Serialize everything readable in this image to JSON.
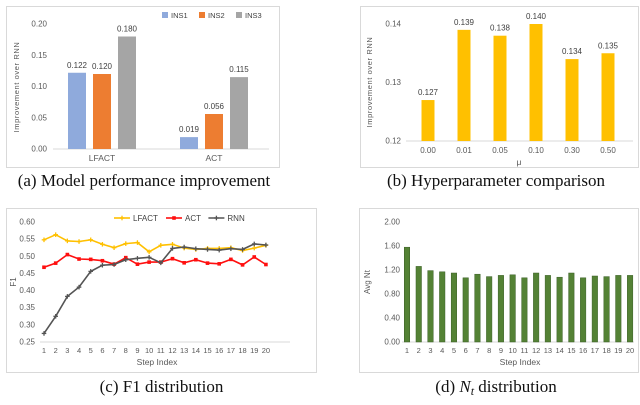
{
  "colors": {
    "ins1_blue": "#8FAADC",
    "ins2_orange": "#ED7D31",
    "ins3_gray": "#A5A5A5",
    "gold": "#FFC000",
    "red": "#FF0F0F",
    "dark_line": "#545454",
    "green": "#548235",
    "green_edge": "#3A5F27",
    "axis_gray": "#D9D9D9",
    "tick_text": "#595959",
    "label_text": "#404040",
    "panel_border": "#D9D9D9"
  },
  "captions": {
    "a": "(a) Model performance improvement",
    "b": "(b) Hyperparameter comparison",
    "c": "(c) F1 distribution",
    "d_prefix": "(d) ",
    "d_var": "N",
    "d_sub": "t",
    "d_suffix": " distribution"
  },
  "chart_data": [
    {
      "id": "a",
      "type": "bar",
      "title": "Model performance improvement",
      "ylabel": "Improvement over RNN",
      "xlabel": "",
      "categories": [
        "LFACT",
        "ACT"
      ],
      "series": [
        {
          "name": "INS1",
          "color_key": "ins1_blue",
          "values": [
            0.122,
            0.019
          ],
          "labels": [
            "0.122",
            "0.019"
          ]
        },
        {
          "name": "INS2",
          "color_key": "ins2_orange",
          "values": [
            0.12,
            0.056
          ],
          "labels": [
            "0.120",
            "0.056"
          ]
        },
        {
          "name": "INS3",
          "color_key": "ins3_gray",
          "values": [
            0.18,
            0.115
          ],
          "labels": [
            "0.180",
            "0.115"
          ]
        }
      ],
      "yticks": [
        0.0,
        0.05,
        0.1,
        0.15,
        0.2
      ],
      "ytick_labels": [
        "0.00",
        "0.05",
        "0.10",
        "0.15",
        "0.20"
      ],
      "ylim": [
        0.0,
        0.2
      ],
      "grid": false,
      "legend_position": "top-right"
    },
    {
      "id": "b",
      "type": "bar",
      "title": "Hyperparameter comparison",
      "ylabel": "Improvement over RNN",
      "xlabel": "μ",
      "categories": [
        "0.00",
        "0.01",
        "0.05",
        "0.10",
        "0.30",
        "0.50"
      ],
      "values": [
        0.127,
        0.139,
        0.138,
        0.14,
        0.134,
        0.135
      ],
      "labels": [
        "0.127",
        "0.139",
        "0.138",
        "0.140",
        "0.134",
        "0.135"
      ],
      "yticks": [
        0.12,
        0.13,
        0.14
      ],
      "ytick_labels": [
        "0.12",
        "0.13",
        "0.14"
      ],
      "ylim": [
        0.12,
        0.14
      ],
      "grid": false,
      "bar_color_key": "gold",
      "legend_position": "none"
    },
    {
      "id": "c",
      "type": "line",
      "title": "F1 distribution",
      "ylabel": "F1",
      "xlabel": "Step Index",
      "x": [
        1,
        2,
        3,
        4,
        5,
        6,
        7,
        8,
        9,
        10,
        11,
        12,
        13,
        14,
        15,
        16,
        17,
        18,
        19,
        20
      ],
      "series": [
        {
          "name": "LFACT",
          "color_key": "gold",
          "marker": "plus",
          "values": [
            0.548,
            0.563,
            0.545,
            0.543,
            0.548,
            0.535,
            0.525,
            0.537,
            0.54,
            0.513,
            0.532,
            0.535,
            0.524,
            0.52,
            0.523,
            0.523,
            0.525,
            0.517,
            0.524,
            0.532
          ]
        },
        {
          "name": "ACT",
          "color_key": "red",
          "marker": "square",
          "values": [
            0.468,
            0.48,
            0.505,
            0.492,
            0.491,
            0.487,
            0.477,
            0.496,
            0.477,
            0.483,
            0.483,
            0.493,
            0.481,
            0.49,
            0.48,
            0.478,
            0.491,
            0.475,
            0.498,
            0.476
          ]
        },
        {
          "name": "RNN",
          "color_key": "dark_line",
          "marker": "plus",
          "values": [
            0.275,
            0.325,
            0.383,
            0.41,
            0.456,
            0.474,
            0.476,
            0.49,
            0.494,
            0.497,
            0.481,
            0.523,
            0.527,
            0.522,
            0.52,
            0.518,
            0.522,
            0.52,
            0.536,
            0.533
          ]
        }
      ],
      "yticks": [
        0.25,
        0.3,
        0.35,
        0.4,
        0.45,
        0.5,
        0.55,
        0.6
      ],
      "ytick_labels": [
        "0.25",
        "0.30",
        "0.35",
        "0.40",
        "0.45",
        "0.50",
        "0.55",
        "0.60"
      ],
      "ylim": [
        0.25,
        0.6
      ],
      "grid": false,
      "legend_position": "top-right"
    },
    {
      "id": "d",
      "type": "bar",
      "title": "Nt distribution",
      "ylabel": "Avg Nt",
      "xlabel": "Step Index",
      "categories": [
        "1",
        "2",
        "3",
        "4",
        "5",
        "6",
        "7",
        "8",
        "9",
        "10",
        "11",
        "12",
        "13",
        "14",
        "15",
        "16",
        "17",
        "18",
        "19",
        "20"
      ],
      "values": [
        1.58,
        1.26,
        1.19,
        1.17,
        1.15,
        1.07,
        1.13,
        1.09,
        1.11,
        1.12,
        1.07,
        1.15,
        1.11,
        1.08,
        1.15,
        1.07,
        1.1,
        1.09,
        1.11,
        1.11
      ],
      "yticks": [
        0.0,
        0.4,
        0.8,
        1.2,
        1.6,
        2.0
      ],
      "ytick_labels": [
        "0.00",
        "0.40",
        "0.80",
        "1.20",
        "1.60",
        "2.00"
      ],
      "ylim": [
        0.0,
        2.0
      ],
      "grid": false,
      "bar_color_key": "green",
      "legend_position": "none"
    }
  ]
}
